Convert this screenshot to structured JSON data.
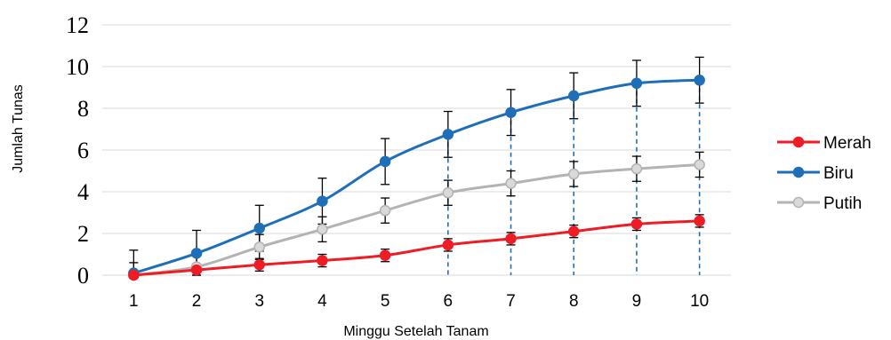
{
  "chart_data": {
    "type": "line",
    "xlabel": "Minggu Setelah Tanam",
    "ylabel": "Jumlah Tunas",
    "x": [
      1,
      2,
      3,
      4,
      5,
      6,
      7,
      8,
      9,
      10
    ],
    "ylim": [
      0,
      12
    ],
    "yticks": [
      0,
      2,
      4,
      6,
      8,
      10,
      12
    ],
    "grid": true,
    "legend_position": "right",
    "series": [
      {
        "name": "Merah",
        "color": "#ee1c25",
        "marker_fill": "#ee1c25",
        "values": [
          0.0,
          0.25,
          0.5,
          0.7,
          0.95,
          1.45,
          1.75,
          2.1,
          2.45,
          2.6
        ],
        "error": [
          0.0,
          0.05,
          0.3,
          0.3,
          0.3,
          0.3,
          0.3,
          0.3,
          0.3,
          0.3
        ]
      },
      {
        "name": "Biru",
        "color": "#1f6fb8",
        "marker_fill": "#1f6fb8",
        "values": [
          0.1,
          1.05,
          2.25,
          3.55,
          5.45,
          6.75,
          7.8,
          8.6,
          9.2,
          9.35
        ],
        "error": [
          1.1,
          1.1,
          1.1,
          1.1,
          1.1,
          1.1,
          1.1,
          1.1,
          1.1,
          1.1
        ],
        "dropline": true
      },
      {
        "name": "Putih",
        "color": "#b3b3b3",
        "marker_fill": "#d9d9d9",
        "values": [
          0.0,
          0.4,
          1.35,
          2.2,
          3.1,
          3.95,
          4.4,
          4.85,
          5.1,
          5.3
        ],
        "error": [
          0.6,
          0.6,
          0.6,
          0.6,
          0.6,
          0.6,
          0.6,
          0.6,
          0.6,
          0.6
        ]
      }
    ]
  }
}
